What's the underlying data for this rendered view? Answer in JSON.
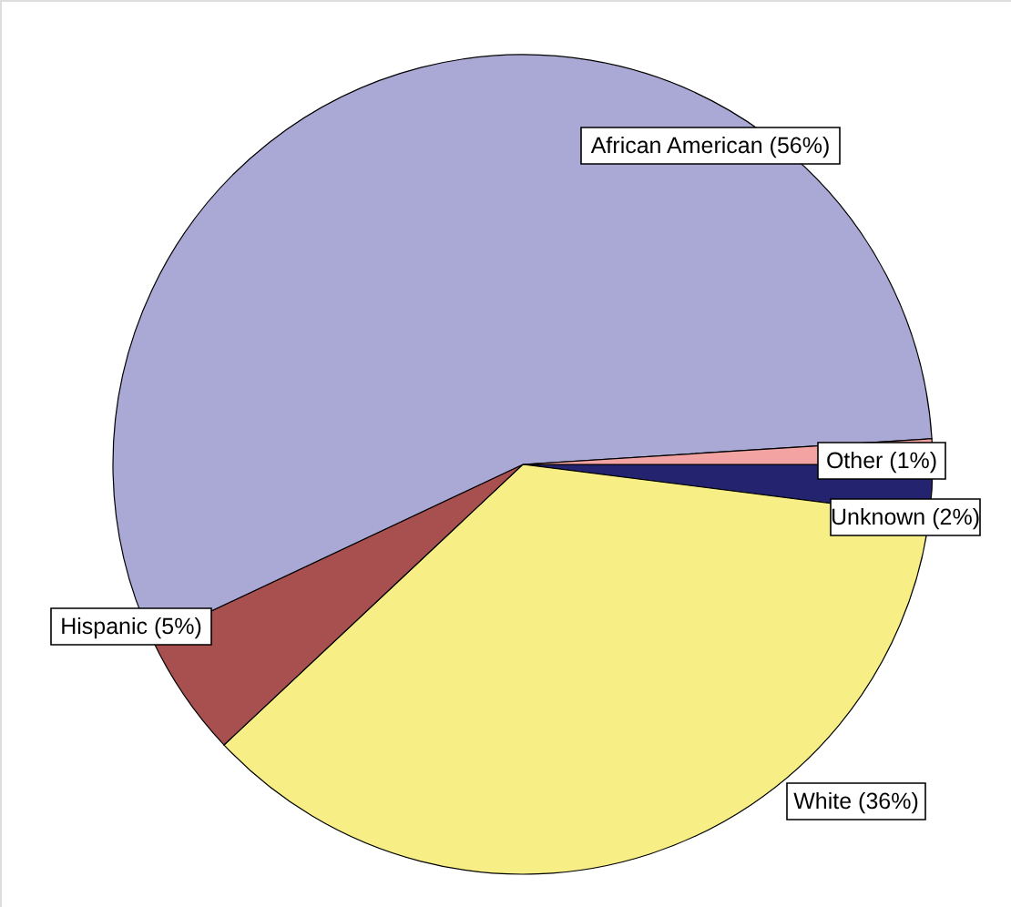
{
  "chart_data": {
    "type": "pie",
    "categories": [
      "Unknown (2%)",
      "White (36%)",
      "Hispanic (5%)",
      "African American (56%)",
      "Other (1%)"
    ],
    "values": [
      2,
      36,
      5,
      56,
      1
    ],
    "colors": [
      "#232370",
      "#f7ef85",
      "#a84f4f",
      "#aaa8d4",
      "#f4a3a3"
    ]
  }
}
